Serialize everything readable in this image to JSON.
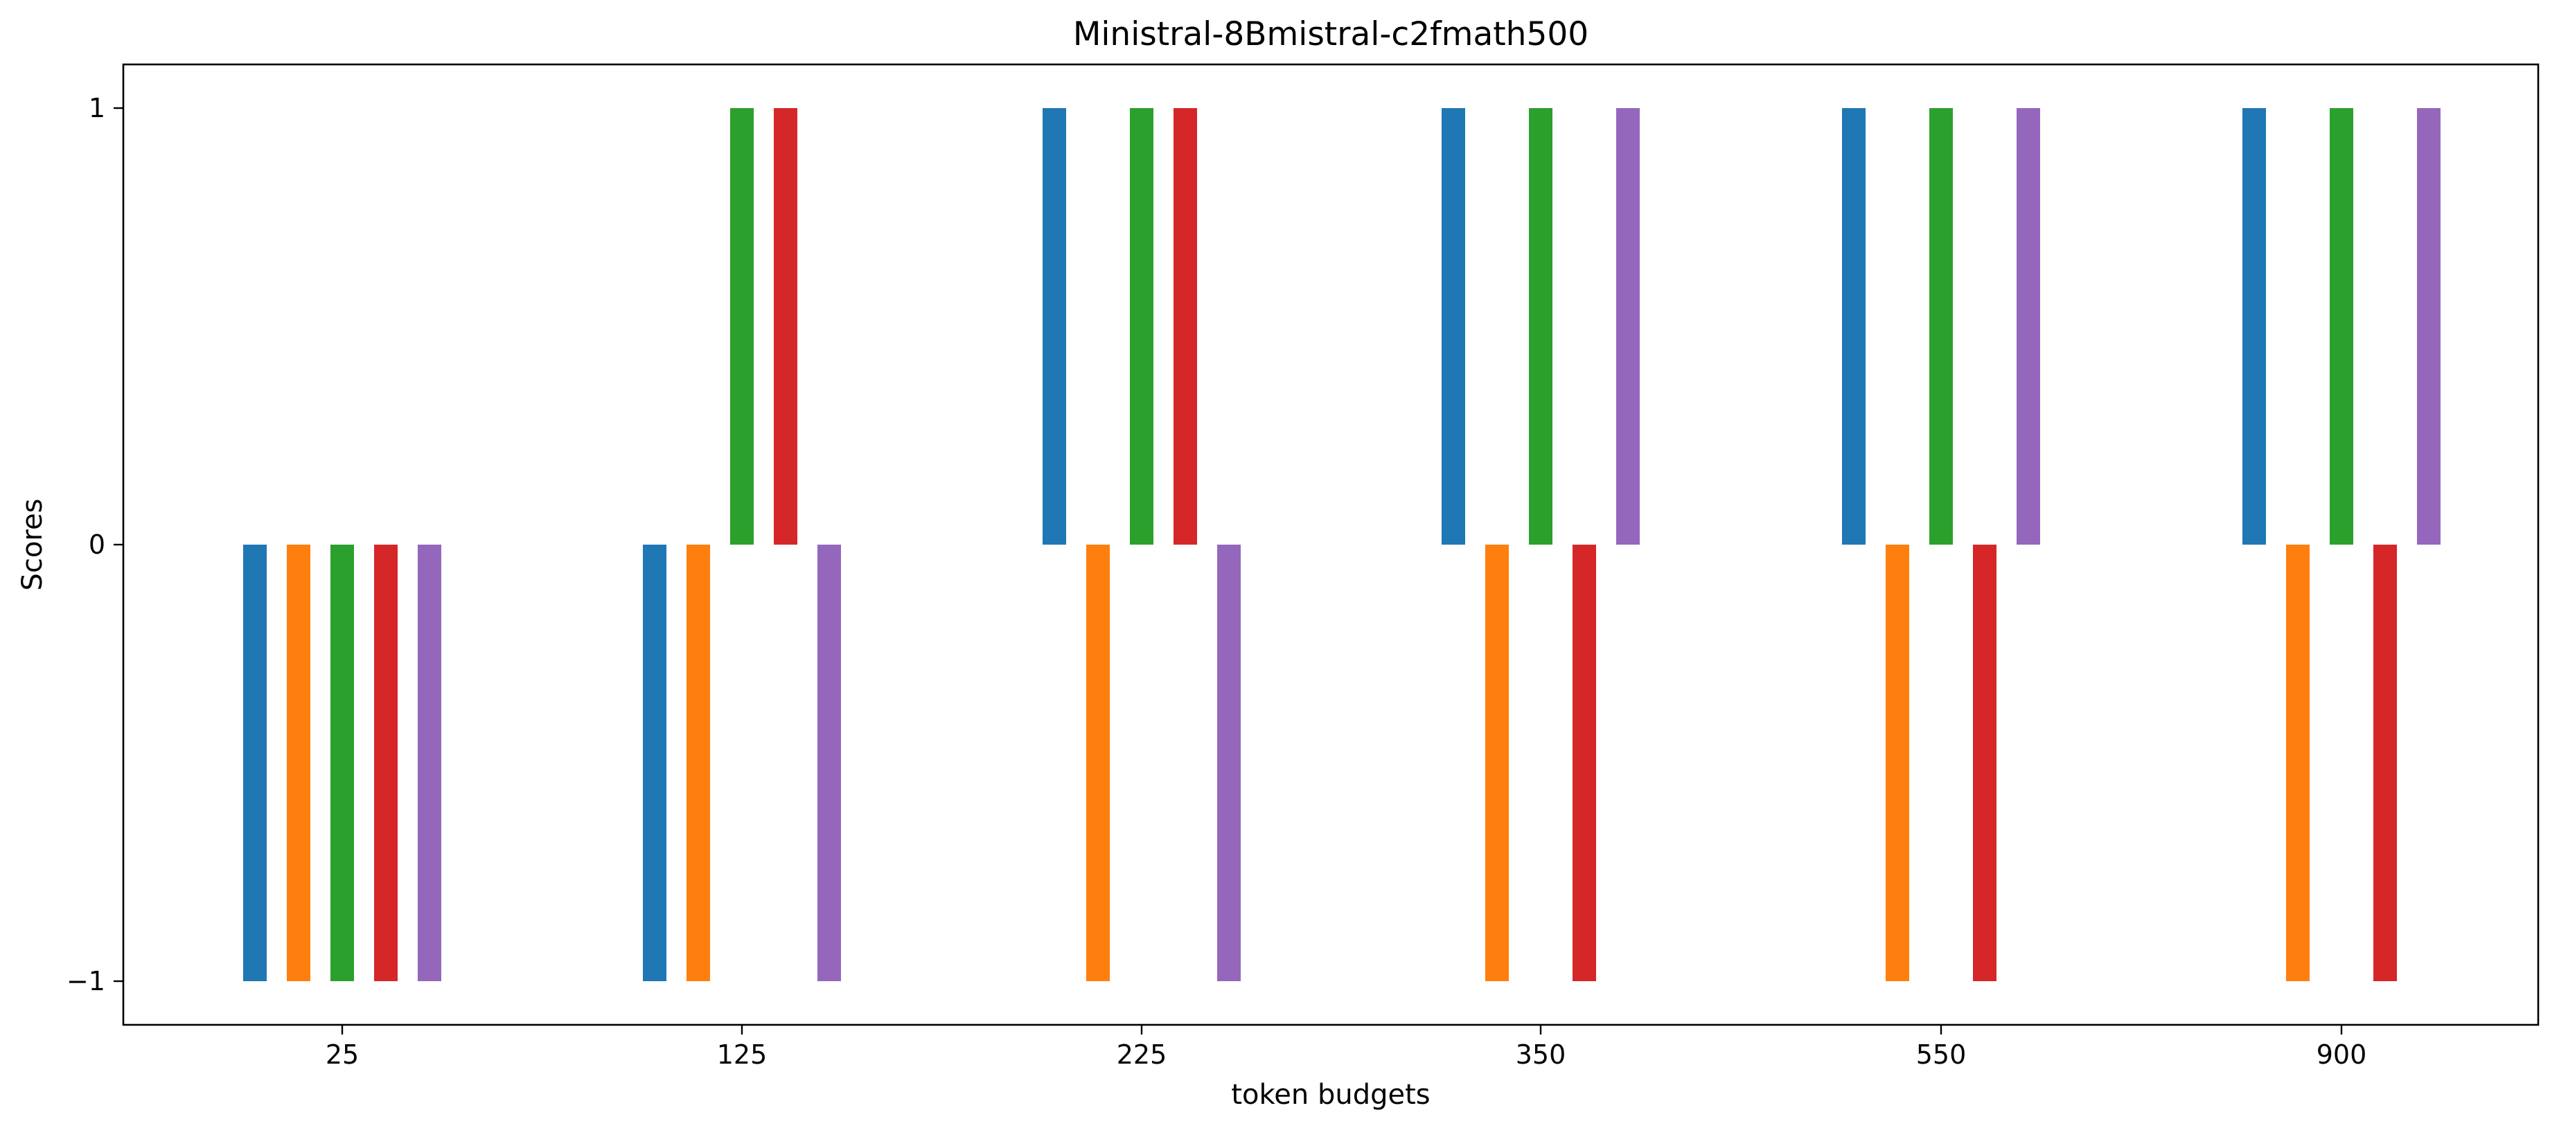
{
  "chart_data": {
    "type": "bar",
    "title": "Ministral-8Bmistral-c2fmath500",
    "xlabel": "token budgets",
    "ylabel": "Scores",
    "categories": [
      "25",
      "125",
      "225",
      "350",
      "550",
      "900"
    ],
    "ylim": [
      -1.1,
      1.1
    ],
    "yticks": [
      -1,
      0,
      1
    ],
    "ytick_labels": [
      "−1",
      "0",
      "1"
    ],
    "grid": false,
    "legend": "none",
    "series": [
      {
        "color": "#1f77b4",
        "values": [
          -1,
          -1,
          1,
          1,
          1,
          1
        ]
      },
      {
        "color": "#ff7f0e",
        "values": [
          -1,
          -1,
          -1,
          -1,
          -1,
          -1
        ]
      },
      {
        "color": "#2ca02c",
        "values": [
          -1,
          1,
          1,
          1,
          1,
          1
        ]
      },
      {
        "color": "#d62728",
        "values": [
          -1,
          1,
          1,
          -1,
          -1,
          -1
        ]
      },
      {
        "color": "#9467bd",
        "values": [
          -1,
          -1,
          -1,
          1,
          1,
          1
        ]
      }
    ]
  }
}
